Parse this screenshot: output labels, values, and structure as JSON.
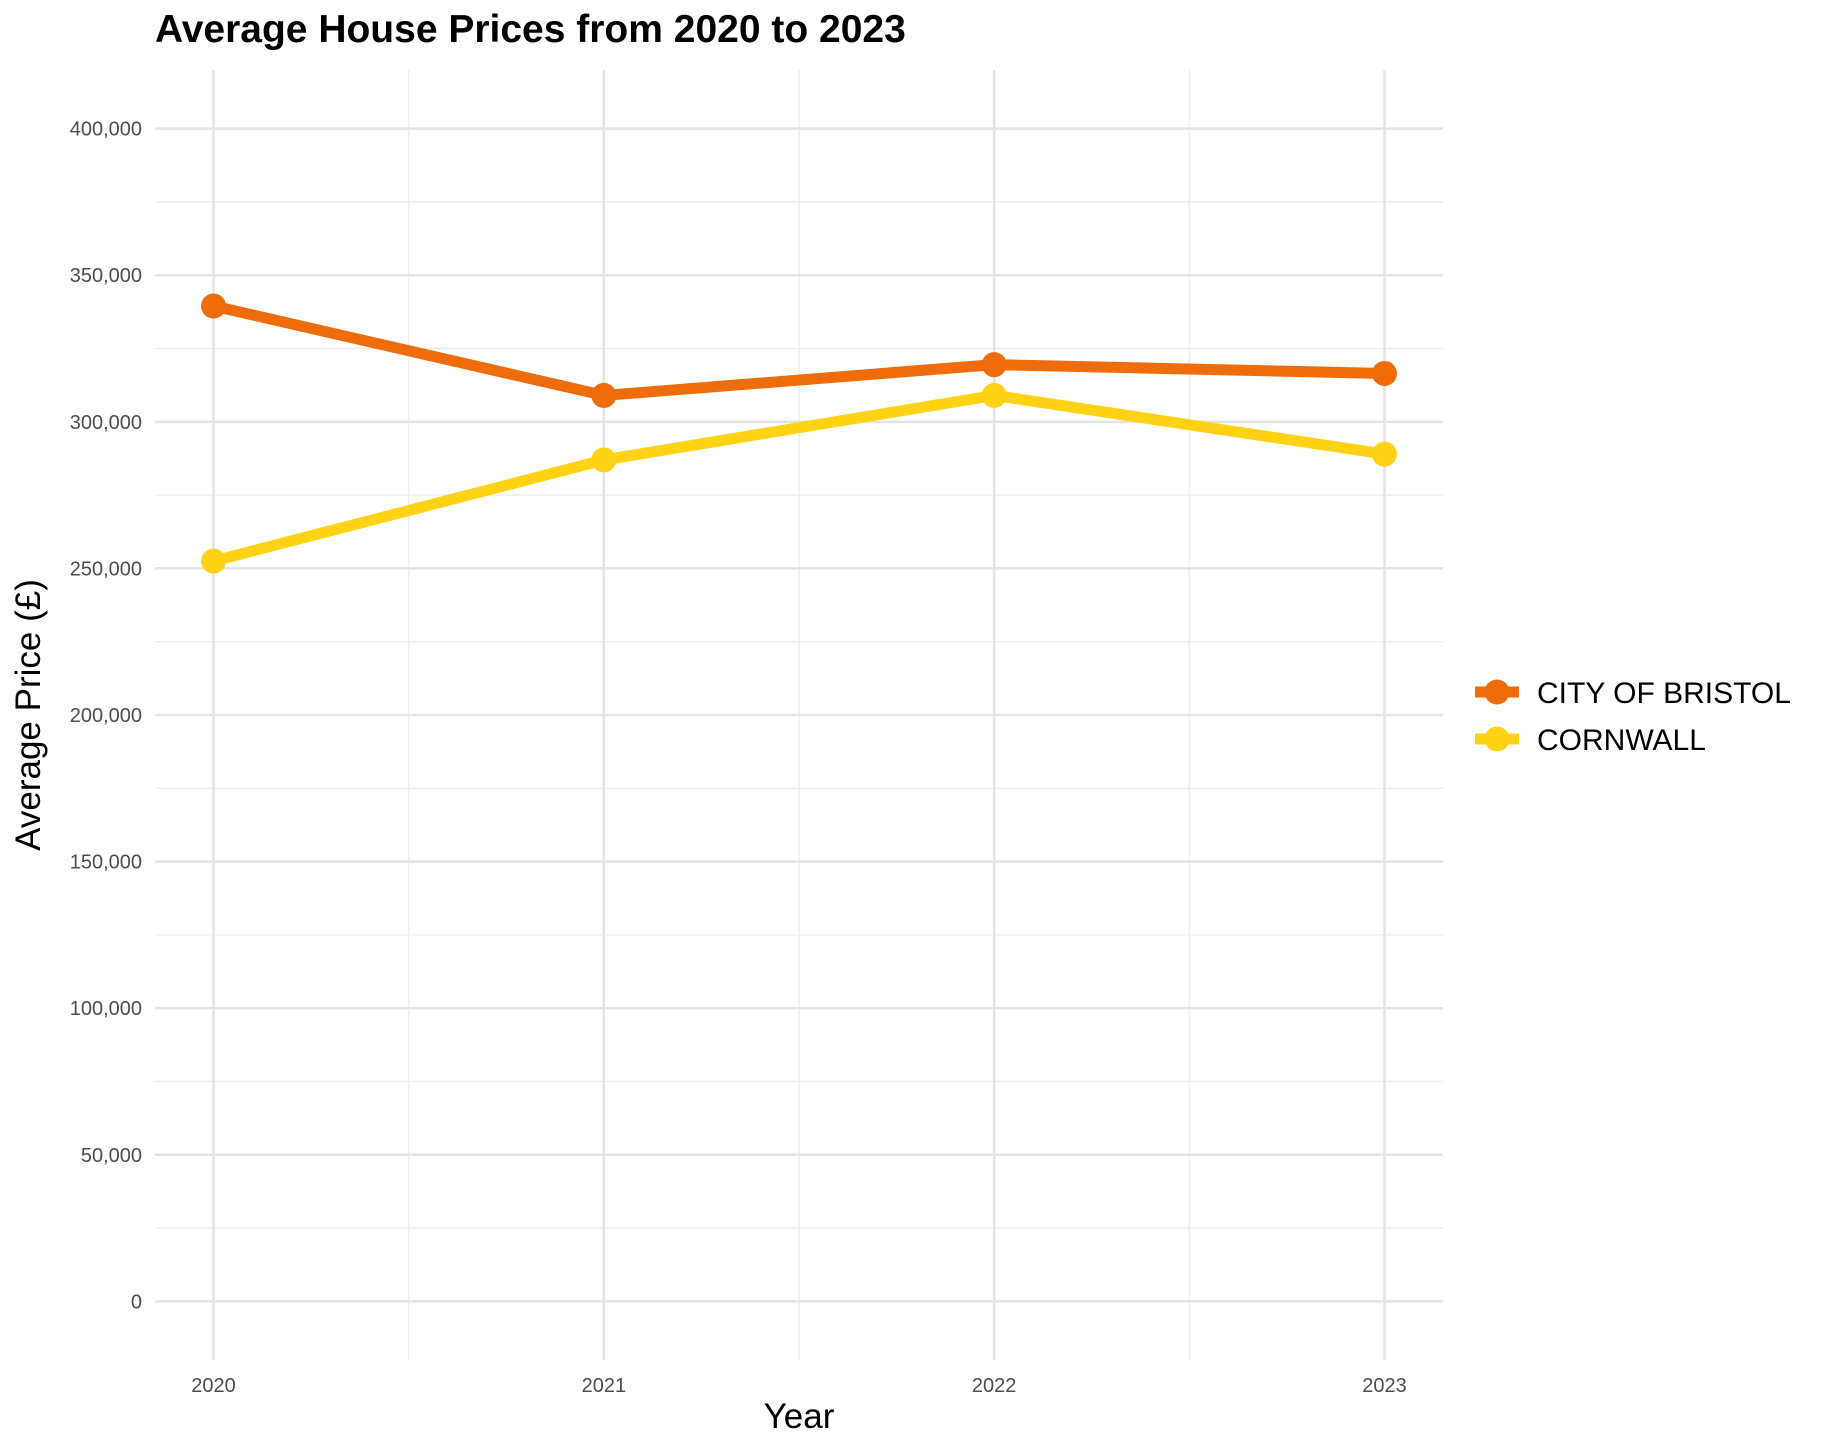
{
  "chart_data": {
    "type": "line",
    "title": "Average House Prices from 2020 to 2023",
    "xlabel": "Year",
    "ylabel": "Average Price (£)",
    "x": [
      2020,
      2021,
      2022,
      2023
    ],
    "x_tick_labels": [
      "2020",
      "2021",
      "2022",
      "2023"
    ],
    "ylim": [
      -20000,
      420000
    ],
    "y_ticks": [
      0,
      50000,
      100000,
      150000,
      200000,
      250000,
      300000,
      350000,
      400000
    ],
    "y_tick_labels": [
      "0",
      "50,000",
      "100,000",
      "150,000",
      "200,000",
      "250,000",
      "300,000",
      "350,000",
      "400,000"
    ],
    "grid": true,
    "legend_position": "right",
    "series": [
      {
        "name": "CITY OF BRISTOL",
        "color": "#EE6C0A",
        "values": [
          339500,
          309000,
          319500,
          316500
        ]
      },
      {
        "name": "CORNWALL",
        "color": "#FFD314",
        "values": [
          252500,
          287000,
          309000,
          289000
        ]
      }
    ]
  }
}
